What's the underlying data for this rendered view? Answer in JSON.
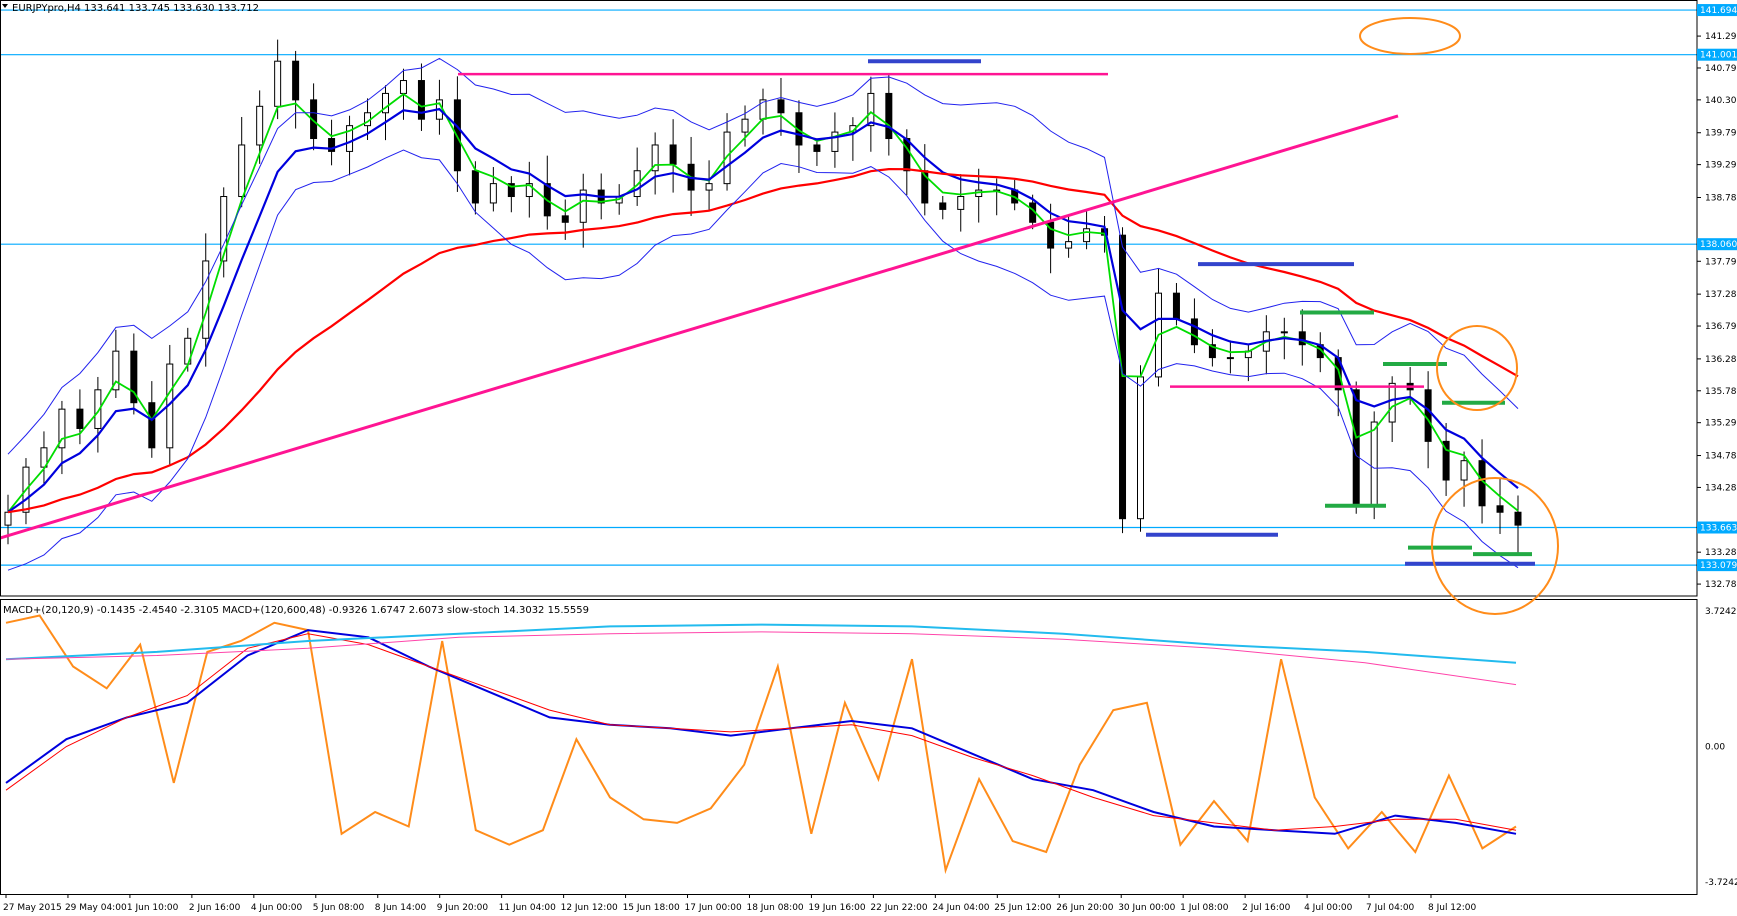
{
  "header": {
    "symbol_line": "EURJPYpro,H4  133.641 133.745 133.630 133.712",
    "macd_line": "MACD+(20,120,9) -0.1435 -2.4540 -2.3105  MACD+(120,600,48) -0.9326 1.6747 2.6073  slow-stoch 14.3032 15.5559"
  },
  "colors": {
    "bull_candle": "#ffffff",
    "bear_candle": "#000000",
    "ema_fast": "#00dd00",
    "ema_mid": "#0000dd",
    "ema_red": "#ff0000",
    "bollinger": "#2222ee",
    "trendline": "#ff1493",
    "level_line": "#00aaff",
    "annotation_circle": "#ff8c1a",
    "stoch": "#ff8c1a",
    "macd_pink": "#ff44aa",
    "macd_cyan": "#22bbee"
  },
  "chart_data": [
    {
      "type": "candlestick",
      "symbol": "EURJPYpro",
      "timeframe": "H4",
      "ohlc_current": {
        "open": 133.641,
        "high": 133.745,
        "low": 133.63,
        "close": 133.712
      },
      "x_tick_labels": [
        "27 May 2015",
        "29 May 04:00",
        "1 Jun 10:00",
        "2 Jun 16:00",
        "4 Jun 00:00",
        "5 Jun 08:00",
        "8 Jun 14:00",
        "9 Jun 20:00",
        "11 Jun 04:00",
        "12 Jun 12:00",
        "15 Jun 18:00",
        "17 Jun 00:00",
        "18 Jun 08:00",
        "19 Jun 16:00",
        "22 Jun 22:00",
        "24 Jun 04:00",
        "25 Jun 12:00",
        "26 Jun 20:00",
        "30 Jun 00:00",
        "1 Jul 08:00",
        "2 Jul 16:00",
        "4 Jul 00:00",
        "7 Jul 04:00",
        "8 Jul 12:00"
      ],
      "y_tick_labels": [
        "141.290",
        "140.795",
        "140.300",
        "139.790",
        "139.295",
        "138.785",
        "137.795",
        "137.285",
        "136.790",
        "136.280",
        "135.785",
        "135.290",
        "134.780",
        "134.285",
        "133.280",
        "132.785"
      ],
      "price_tags": [
        {
          "value": "141.694",
          "color": "#00aaff"
        },
        {
          "value": "141.001",
          "color": "#00aaff"
        },
        {
          "value": "138.060",
          "color": "#00aaff"
        },
        {
          "value": "133.663",
          "color": "#00aaff"
        },
        {
          "value": "133.079",
          "color": "#00aaff"
        }
      ],
      "horizontal_levels": [
        141.694,
        141.001,
        138.06,
        133.663,
        133.079
      ],
      "ylim": [
        132.6,
        141.85
      ],
      "close_path": [
        133.9,
        134.6,
        134.9,
        135.5,
        135.2,
        135.8,
        136.4,
        135.6,
        134.9,
        136.2,
        136.6,
        137.8,
        138.8,
        139.6,
        140.2,
        140.9,
        140.3,
        139.7,
        139.5,
        139.9,
        140.1,
        140.4,
        140.6,
        140.0,
        140.3,
        139.2,
        138.7,
        139.0,
        138.8,
        139.0,
        138.5,
        138.4,
        138.9,
        138.7,
        138.8,
        139.2,
        139.6,
        139.3,
        138.9,
        139.0,
        139.8,
        140.0,
        140.3,
        140.1,
        139.6,
        139.5,
        139.8,
        139.9,
        140.4,
        139.7,
        139.2,
        138.7,
        138.6,
        138.8,
        138.9,
        138.9,
        138.7,
        138.4,
        138.0,
        138.1,
        138.3,
        138.2,
        133.8,
        136.0,
        137.3,
        136.9,
        136.5,
        136.3,
        136.3,
        136.4,
        136.7,
        136.7,
        136.5,
        136.3,
        135.8,
        134.0,
        135.3,
        135.9,
        135.8,
        135.0,
        134.4,
        134.7,
        134.0,
        133.9,
        133.7
      ]
    },
    {
      "type": "line",
      "name": "macd-stoch-subwindow",
      "y_tick_labels": [
        "3.7242",
        "0.00",
        "-3.7242"
      ],
      "ylim": [
        -3.7242,
        3.7242
      ],
      "series": [
        {
          "name": "slow-stoch",
          "values": [
            3.4,
            3.6,
            2.2,
            1.6,
            2.8,
            -1.0,
            2.6,
            2.9,
            3.4,
            3.2,
            -2.4,
            -1.8,
            -2.2,
            2.9,
            -2.3,
            -2.7,
            -2.3,
            0.2,
            -1.4,
            -2.0,
            -2.1,
            -1.7,
            -0.5,
            2.2,
            -2.4,
            1.2,
            -0.9,
            2.4,
            -3.4,
            -0.9,
            -2.6,
            -2.9,
            -0.5,
            1.0,
            1.2,
            -2.7,
            -1.5,
            -2.6,
            2.4,
            -1.4,
            -2.8,
            -1.8,
            -2.9,
            -0.8,
            -2.8,
            -2.2
          ]
        },
        {
          "name": "MACD(20,120,9) main",
          "values": [
            -1.0,
            0.2,
            0.8,
            1.2,
            2.5,
            3.2,
            3.0,
            2.2,
            1.5,
            0.8,
            0.6,
            0.5,
            0.3,
            0.5,
            0.7,
            0.5,
            -0.2,
            -0.9,
            -1.2,
            -1.8,
            -2.2,
            -2.3,
            -2.4,
            -1.9,
            -2.1,
            -2.4
          ]
        },
        {
          "name": "MACD(20,120,9) signal",
          "values": [
            -1.2,
            0.0,
            0.8,
            1.4,
            2.7,
            3.1,
            2.8,
            2.2,
            1.6,
            1.0,
            0.6,
            0.5,
            0.4,
            0.5,
            0.6,
            0.3,
            -0.3,
            -0.8,
            -1.4,
            -1.9,
            -2.1,
            -2.3,
            -2.2,
            -2.0,
            -2.0,
            -2.3
          ]
        },
        {
          "name": "MACD(120,600,48) main",
          "values": [
            2.4,
            2.6,
            2.9,
            3.1,
            3.3,
            3.35,
            3.3,
            3.1,
            2.8,
            2.6,
            2.3
          ]
        },
        {
          "name": "MACD(120,600,48) signal",
          "values": [
            2.4,
            2.5,
            2.7,
            3.0,
            3.1,
            3.15,
            3.1,
            2.95,
            2.7,
            2.3,
            1.7
          ]
        }
      ]
    }
  ]
}
